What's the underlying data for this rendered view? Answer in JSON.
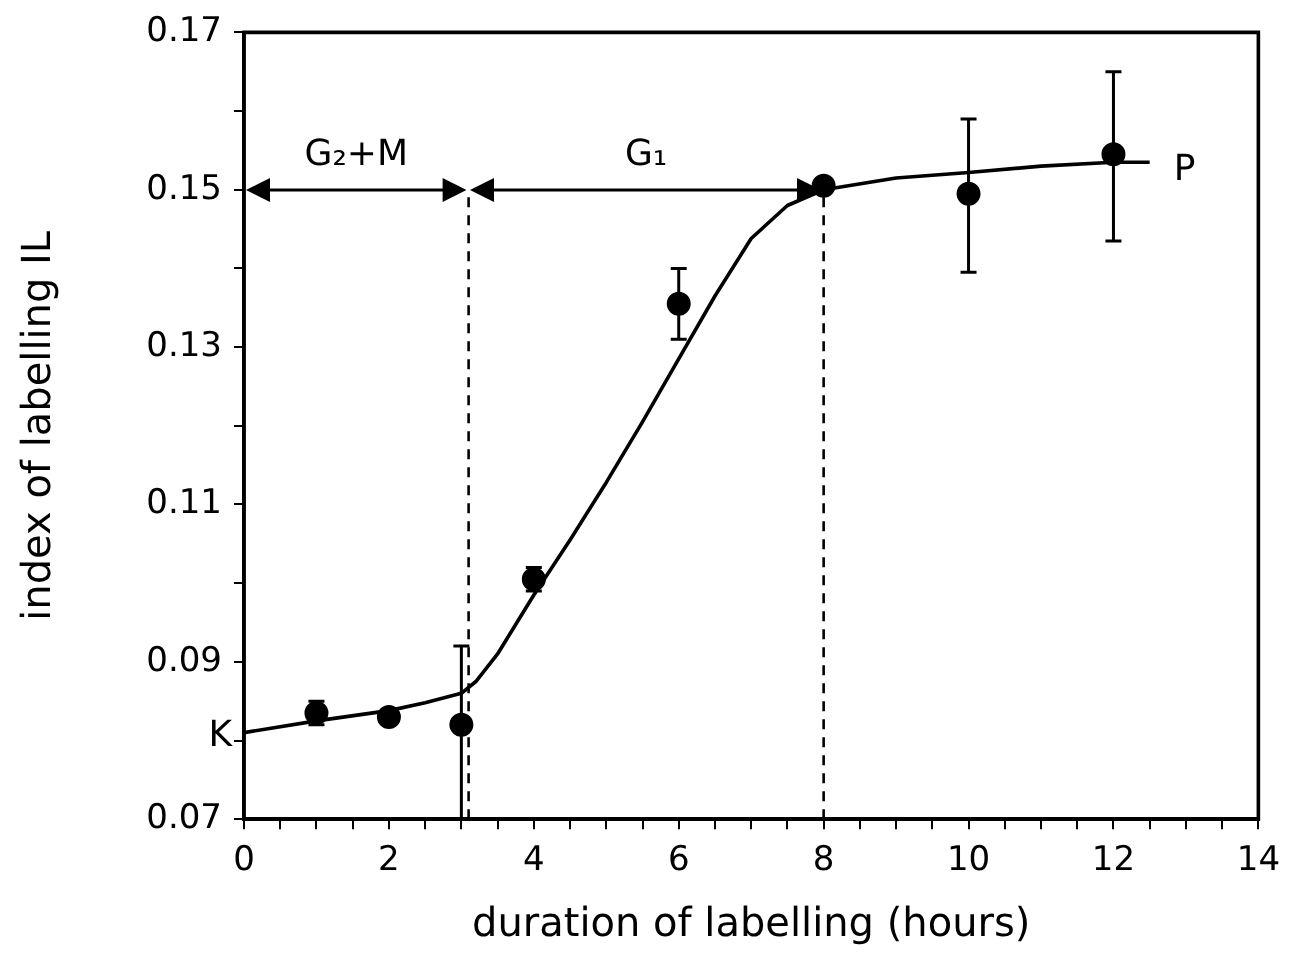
{
  "chart_data": {
    "type": "scatter",
    "xlabel": "duration of labelling (hours)",
    "ylabel": "index of labelling IL",
    "xlim": [
      0,
      14
    ],
    "ylim": [
      0.07,
      0.17
    ],
    "xticks": [
      0,
      {
        "value": 0.5,
        "label": null
      },
      {
        "value": 1,
        "label": null
      },
      {
        "value": 1.5,
        "label": null
      },
      2,
      {
        "value": 2.5,
        "label": null
      },
      {
        "value": 3,
        "label": null
      },
      {
        "value": 3.5,
        "label": null
      },
      4,
      {
        "value": 4.5,
        "label": null
      },
      {
        "value": 5,
        "label": null
      },
      {
        "value": 5.5,
        "label": null
      },
      6,
      {
        "value": 6.5,
        "label": null
      },
      {
        "value": 7,
        "label": null
      },
      {
        "value": 7.5,
        "label": null
      },
      8,
      {
        "value": 8.5,
        "label": null
      },
      {
        "value": 9,
        "label": null
      },
      {
        "value": 9.5,
        "label": null
      },
      10,
      {
        "value": 10.5,
        "label": null
      },
      {
        "value": 11,
        "label": null
      },
      {
        "value": 11.5,
        "label": null
      },
      12,
      {
        "value": 12.5,
        "label": null
      },
      {
        "value": 13,
        "label": null
      },
      {
        "value": 13.5,
        "label": null
      },
      14
    ],
    "yticks": [
      {
        "value": 0.07,
        "label": "0.07"
      },
      {
        "value": 0.08,
        "label": null
      },
      {
        "value": 0.09,
        "label": "0.09"
      },
      {
        "value": 0.1,
        "label": null
      },
      {
        "value": 0.11,
        "label": "0.11"
      },
      {
        "value": 0.12,
        "label": null
      },
      {
        "value": 0.13,
        "label": "0.13"
      },
      {
        "value": 0.14,
        "label": null
      },
      {
        "value": 0.15,
        "label": "0.15"
      },
      {
        "value": 0.16,
        "label": null
      },
      {
        "value": 0.17,
        "label": "0.17"
      }
    ],
    "grid": false,
    "legend": false,
    "series": [
      {
        "color": "#000000",
        "marker": "circle",
        "x": [
          1,
          2,
          3,
          4,
          6,
          8,
          10,
          12
        ],
        "values": [
          0.0835,
          0.083,
          0.082,
          0.1005,
          0.1355,
          0.1505,
          0.1495,
          0.1545
        ],
        "errors": [
          0.0015,
          null,
          [
            0.07,
            0.092
          ],
          0.0015,
          [
            0.131,
            0.14
          ],
          null,
          [
            0.1395,
            0.159
          ],
          [
            0.1435,
            0.165
          ]
        ]
      },
      {
        "type": "line",
        "color": "#000000",
        "marker": "none",
        "line_style": "solid",
        "x": [
          0,
          1,
          2,
          2.5,
          3,
          3.2,
          3.5,
          4,
          4.5,
          5,
          5.5,
          6,
          6.5,
          7,
          7.5,
          8,
          9,
          10,
          11,
          12,
          12.5
        ],
        "values": [
          0.081,
          0.0825,
          0.0838,
          0.0848,
          0.086,
          0.0875,
          0.091,
          0.0985,
          0.1055,
          0.1128,
          0.1205,
          0.1285,
          0.1365,
          0.1438,
          0.148,
          0.15,
          0.1515,
          0.1522,
          0.153,
          0.1535,
          0.1535
        ]
      }
    ],
    "ref_lines": [
      {
        "axis": "x",
        "value": 3.1,
        "line_style": "dashed",
        "color": "#000000"
      },
      {
        "axis": "x",
        "value": 8,
        "line_style": "dashed",
        "color": "#000000"
      }
    ],
    "annotations": [
      "G₂+M",
      "G₁",
      {
        "text": "K",
        "x": 0,
        "y": 0.081
      },
      {
        "text": "P",
        "x": 12.5,
        "y": 0.1535
      }
    ]
  }
}
